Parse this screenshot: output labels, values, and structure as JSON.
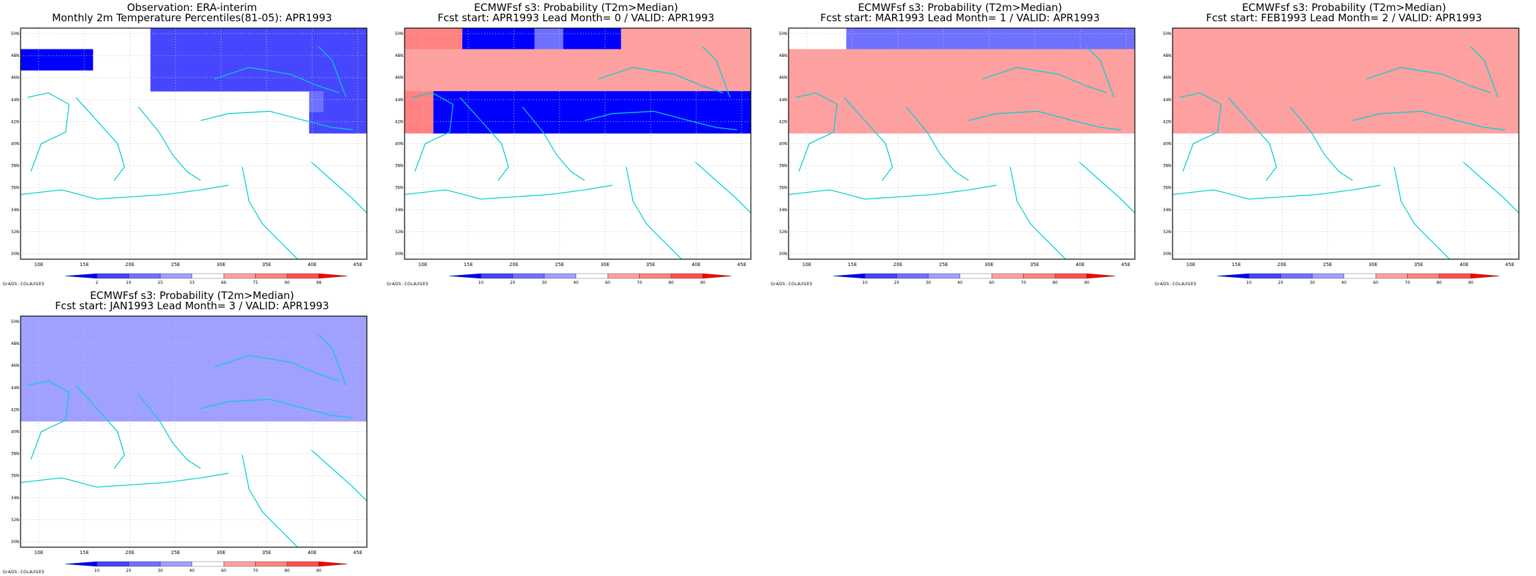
{
  "colors": {
    "blue_scale": [
      "#0000ff",
      "#4646ff",
      "#7070ff",
      "#a0a0ff"
    ],
    "red_scale": [
      "#ffa0a0",
      "#ff8282",
      "#ff5050",
      "#ff0000"
    ],
    "coast": "#00d0d0",
    "grid": "#c8c8c8",
    "frame": "#000000"
  },
  "axes": {
    "lon_labels": [
      "10E",
      "15E",
      "20E",
      "25E",
      "30E",
      "35E",
      "40E",
      "45E"
    ],
    "lat_labels": [
      "30N",
      "32N",
      "34N",
      "36N",
      "38N",
      "40N",
      "42N",
      "44N",
      "46N",
      "48N",
      "50N"
    ]
  },
  "credit": "GrADS: COLA/IGES",
  "panels": [
    {
      "title_line1": "Observation: ERA-interim",
      "title_line2": "Monthly 2m Temperature Percentiles(81-05): APR1993",
      "colorbar_labels": [
        "2",
        "10",
        "25",
        "33",
        "66",
        "75",
        "90",
        "98"
      ],
      "grid": [
        "WWWWWWWWWBBBBBBBBBBBBBBB",
        "AAAAAWWWWBBBBBBBBBBBBBBB",
        "WWWWWWWWWBBBBBBBBBBBBBBB",
        "WWWWWWWWWWWWWWWWWWWWCBBB",
        "WWWWWWWWWWWWWWWWWWWWBBBB",
        "WWWWWWWWWWWWWWWWWWWWWWWW",
        "WWWWWWWWWWWWWWWWWWWWWWWW",
        "WWWWWWWWWWWWWWWWWWWWWWWW",
        "WWWWWWWWWWWWWWWWWWWWWWWW",
        "WWWWWWWWWWWWWWWWWWWWWWWW",
        "WWWWWWWWWWWWWWWWWWWWWWWW"
      ]
    },
    {
      "title_line1": "ECMWFsf s3: Probability (T2m>Median)",
      "title_line2": "Fcst start: APR1993  Lead Month= 0 / VALID: APR1993",
      "colorbar_labels": [
        "10",
        "20",
        "30",
        "40",
        "60",
        "70",
        "80",
        "90"
      ],
      "grid": [
        "FFFFAAAAACCAAAAEEEEEEEEE",
        "EEEEEEEEEEEEEEEEEEEEEEEE",
        "EEEEEEEEEEEEEEEEEEEEEEEE",
        "FFAAAAAAAAAAAAAAAAAAAAAA",
        "FFAAAAAAAAAAAAAAAAAAAAAA",
        "WWWWWWWWWWWWWWWWWWWWWWWW",
        "WWWWWWWWWWWWWWWWWWWWWWWW",
        "WWWWWWWWWWWWWWWWWWWWWWWW",
        "WWWWWWWWWWWWWWWWWWWWWWWW",
        "WWWWWWWWWWWWWWWWWWWWWWWW",
        "WWWWWWWWWWWWWWWWWWWWWWWW"
      ]
    },
    {
      "title_line1": "ECMWFsf s3: Probability (T2m>Median)",
      "title_line2": "Fcst start: MAR1993  Lead Month= 1 / VALID: APR1993",
      "colorbar_labels": [
        "10",
        "20",
        "30",
        "40",
        "60",
        "70",
        "80",
        "90"
      ],
      "grid": [
        "WWWWCCCCCCCCCCCCCCCCCCCC",
        "EEEEEEEEEEEEEEEEEEEEEEEE",
        "EEEEEEEEEEEEEEEEEEEEEEEE",
        "EEEEEEEEEEEEEEEEEEEEEEEE",
        "EEEEEEEEEEEEEEEEEEEEEEEE",
        "WWWWWWWWWWWWWWWWWWWWWWWW",
        "WWWWWWWWWWWWWWWWWWWWWWWW",
        "WWWWWWWWWWWWWWWWWWWWWWWW",
        "WWWWWWWWWWWWWWWWWWWWWWWW",
        "WWWWWWWWWWWWWWWWWWWWWWWW",
        "WWWWWWWWWWWWWWWWWWWWWWWW"
      ]
    },
    {
      "title_line1": "ECMWFsf s3: Probability (T2m>Median)",
      "title_line2": "Fcst start: FEB1993  Lead Month= 2 / VALID: APR1993",
      "colorbar_labels": [
        "10",
        "20",
        "30",
        "40",
        "60",
        "70",
        "80",
        "90"
      ],
      "grid": [
        "EEEEEEEEEEEEEEEEEEEEEEEE",
        "EEEEEEEEEEEEEEEEEEEEEEEE",
        "EEEEEEEEEEEEEEEEEEEEEEEE",
        "EEEEEEEEEEEEEEEEEEEEEEEE",
        "EEEEEEEEEEEEEEEEEEEEEEEE",
        "WWWWWWWWWWWWWWWWWWWWWWWW",
        "WWWWWWWWWWWWWWWWWWWWWWWW",
        "WWWWWWWWWWWWWWWWWWWWWWWW",
        "WWWWWWWWWWWWWWWWWWWWWWWW",
        "WWWWWWWWWWWWWWWWWWWWWWWW",
        "WWWWWWWWWWWWWWWWWWWWWWWW"
      ]
    },
    {
      "title_line1": "ECMWFsf s3: Probability (T2m>Median)",
      "title_line2": "Fcst start: JAN1993  Lead Month= 3 / VALID: APR1993",
      "colorbar_labels": [
        "10",
        "20",
        "30",
        "40",
        "60",
        "70",
        "80",
        "90"
      ],
      "grid": [
        "DDDDDDDDDDDDDDDDDDDDDDDD",
        "DDDDDDDDDDDDDDDDDDDDDDDD",
        "DDDDDDDDDDDDDDDDDDDDDDDD",
        "DDDDDDDDDDDDDDDDDDDDDDDD",
        "DDDDDDDDDDDDDDDDDDDDDDDD",
        "WWWWWWWWWWWWWWWWWWWWWWWW",
        "WWWWWWWWWWWWWWWWWWWWWWWW",
        "WWWWWWWWWWWWWWWWWWWWWWWW",
        "WWWWWWWWWWWWWWWWWWWWWWWW",
        "WWWWWWWWWWWWWWWWWWWWWWWW",
        "WWWWWWWWWWWWWWWWWWWWWWWW"
      ]
    }
  ]
}
